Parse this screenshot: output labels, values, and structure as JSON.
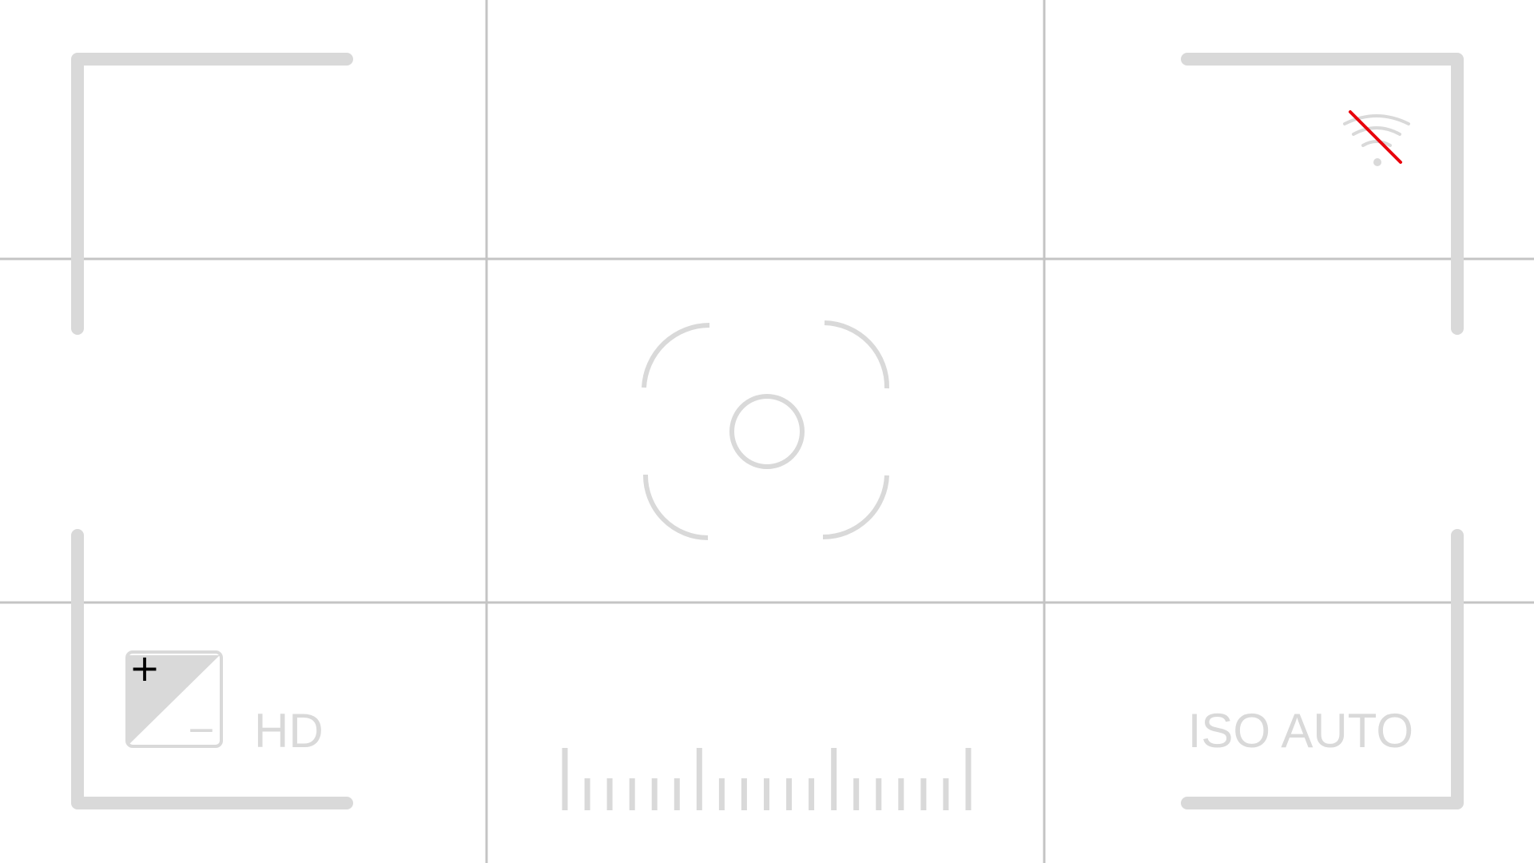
{
  "status": {
    "wifi": {
      "icon": "wifi-off-icon",
      "connected": false,
      "slash_color": "#e8000b"
    }
  },
  "exposure": {
    "icon": "exposure-compensation-icon",
    "plus_symbol": "+",
    "minus_symbol": "−"
  },
  "video_quality": {
    "label": "HD"
  },
  "iso": {
    "label": "ISO AUTO"
  },
  "focus": {
    "icon": "focus-reticle-icon"
  },
  "zoom_scale": {
    "icon": "zoom-ruler-icon",
    "tick_count": 19,
    "major_every": 6
  },
  "grid": {
    "rule_of_thirds": true,
    "line_color": "#c4c4c4"
  },
  "colors": {
    "overlay": "#d9d9d9",
    "background": "#ffffff",
    "exposure_symbol": "#000000"
  }
}
